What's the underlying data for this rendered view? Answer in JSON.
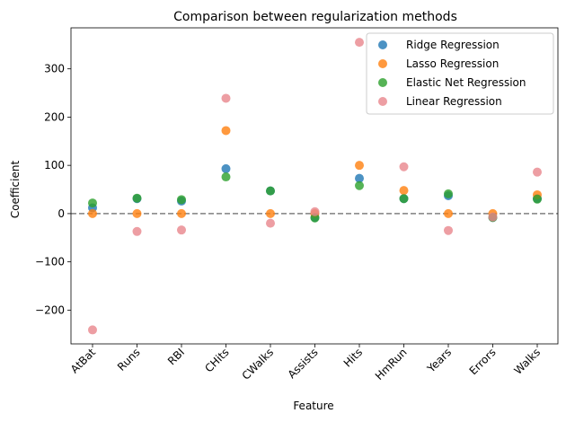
{
  "chart_data": {
    "type": "scatter",
    "title": "Comparison between regularization methods",
    "xlabel": "Feature",
    "ylabel": "Coefficient",
    "categories": [
      "AtBat",
      "Runs",
      "RBI",
      "CHits",
      "CWalks",
      "Assists",
      "Hits",
      "HmRun",
      "Years",
      "Errors",
      "Walks"
    ],
    "ylim": [
      -270,
      385
    ],
    "yticks": [
      -200,
      -100,
      0,
      100,
      200,
      300
    ],
    "ytick_labels": [
      "−200",
      "−100",
      "0",
      "100",
      "200",
      "300"
    ],
    "reference_line": {
      "y": 0,
      "style": "dashed",
      "color": "#808080"
    },
    "legend_position": "top-right",
    "series": [
      {
        "name": "Ridge Regression",
        "color": "#1f77b4",
        "alpha": 0.8,
        "values": [
          12,
          31,
          26,
          93,
          47,
          -8,
          73,
          31,
          37,
          -8,
          31
        ]
      },
      {
        "name": "Lasso Regression",
        "color": "#ff7f0e",
        "alpha": 0.8,
        "values": [
          0,
          0,
          0,
          172,
          0,
          0,
          100,
          48,
          0,
          0,
          39
        ]
      },
      {
        "name": "Elastic Net Regression",
        "color": "#2ca02c",
        "alpha": 0.8,
        "values": [
          22,
          32,
          29,
          76,
          47,
          -9,
          58,
          31,
          41,
          -8,
          30
        ]
      },
      {
        "name": "Linear Regression",
        "color": "#e377c2",
        "display_color": "#e8868c",
        "alpha": 0.8,
        "values": [
          -241,
          -37,
          -34,
          239,
          -20,
          4,
          355,
          97,
          -35,
          -7,
          86
        ]
      }
    ]
  }
}
